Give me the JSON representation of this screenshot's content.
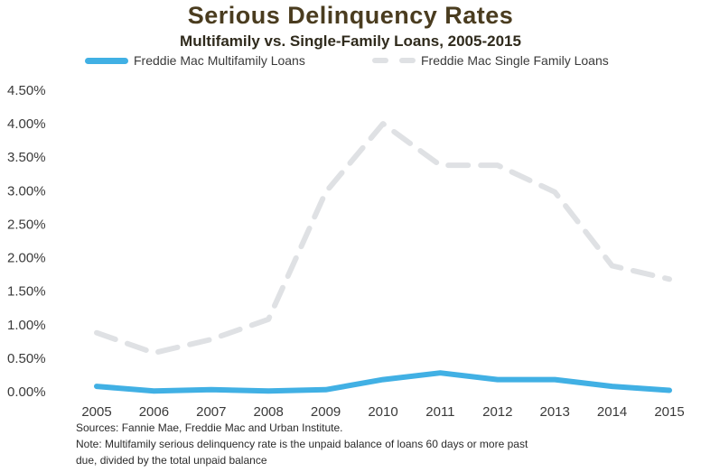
{
  "chart_data": {
    "type": "line",
    "title": "Serious Delinquency Rates",
    "subtitle": "Multifamily vs. Single-Family Loans, 2005-2015",
    "x": [
      "2005",
      "2006",
      "2007",
      "2008",
      "2009",
      "2010",
      "2011",
      "2012",
      "2013",
      "2014",
      "2015"
    ],
    "y_ticks": [
      "0.00%",
      "0.50%",
      "1.00%",
      "1.50%",
      "2.00%",
      "2.50%",
      "3.00%",
      "3.50%",
      "4.00%",
      "4.50%"
    ],
    "ylim": [
      0,
      4.5
    ],
    "series": [
      {
        "name": "Freddie Mac Multifamily Loans",
        "values": [
          0.08,
          0.01,
          0.03,
          0.01,
          0.03,
          0.18,
          0.28,
          0.18,
          0.18,
          0.08,
          0.02
        ],
        "color": "#41b0e4",
        "style": "solid"
      },
      {
        "name": "Freddie Mac Single Family Loans",
        "values": [
          0.88,
          0.58,
          0.78,
          1.08,
          2.98,
          4.0,
          3.38,
          3.38,
          2.98,
          1.88,
          1.68
        ],
        "color": "#dfe1e4",
        "style": "dashed"
      }
    ],
    "legend_position": "top",
    "grid": false
  },
  "notes": {
    "sources": "Sources: Fannie Mae, Freddie Mac and Urban Institute.",
    "note_line1": "Note: Multifamily serious delinquency rate is the unpaid balance of loans 60 days or more past",
    "note_line2": "due, divided by the total unpaid balance"
  }
}
